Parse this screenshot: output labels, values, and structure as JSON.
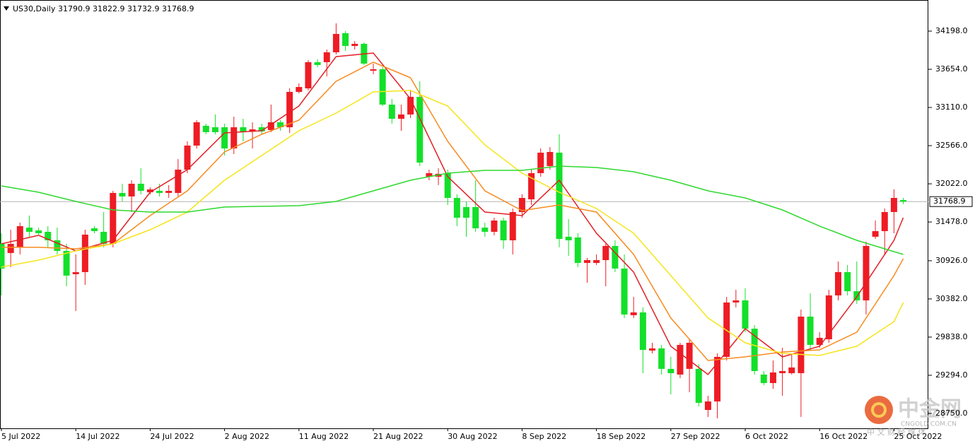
{
  "chart_data": {
    "type": "candlestick",
    "title": "US30,Daily",
    "title_ohlc": "31790.9 31822.9 31732.9 31768.9",
    "categories": [
      "5 Jul 2022",
      null,
      null,
      null,
      null,
      null,
      null,
      null,
      "14 Jul 2022",
      null,
      null,
      null,
      null,
      null,
      null,
      null,
      "24 Jul 2022",
      null,
      null,
      null,
      null,
      null,
      null,
      null,
      "2 Aug 2022",
      null,
      null,
      null,
      null,
      null,
      null,
      null,
      "11 Aug 2022",
      null,
      null,
      null,
      null,
      null,
      null,
      null,
      "21 Aug 2022",
      null,
      null,
      null,
      null,
      null,
      null,
      null,
      "30 Aug 2022",
      null,
      null,
      null,
      null,
      null,
      null,
      null,
      "8 Sep 2022",
      null,
      null,
      null,
      null,
      null,
      null,
      null,
      "18 Sep 2022",
      null,
      null,
      null,
      null,
      null,
      null,
      null,
      "27 Sep 2022",
      null,
      null,
      null,
      null,
      null,
      null,
      null,
      "6 Oct 2022",
      null,
      null,
      null,
      null,
      null,
      null,
      null,
      "16 Oct 2022",
      null,
      null,
      null,
      null,
      null,
      null,
      null,
      "25 Oct 2022",
      null
    ],
    "open": [
      31167,
      31036,
      31117,
      31398,
      31358,
      31338,
      31217,
      31066,
      30734,
      30764,
      31388,
      31338,
      31167,
      31892,
      31842,
      32023,
      31902,
      31922,
      31892,
      31892,
      32224,
      32567,
      32849,
      32828,
      32828,
      32526,
      32828,
      32768,
      32828,
      32788,
      32899,
      32828,
      33332,
      33382,
      33755,
      33755,
      33896,
      34168,
      33986,
      34017,
      33634,
      33654,
      33151,
      32949,
      33010,
      33261,
      32124,
      32124,
      32174,
      31821,
      31691,
      31691,
      31398,
      31338,
      31499,
      31217,
      31620,
      31801,
      32174,
      32275,
      32466,
      31268,
      31257,
      30895,
      30895,
      30935,
      31137,
      30815,
      30150,
      30190,
      29646,
      29677,
      29385,
      29304,
      29385,
      29385,
      28800,
      28921,
      29556,
      30331,
      30361,
      29958,
      29304,
      29183,
      29324,
      29324,
      29324,
      30130,
      29727,
      29807,
      30432,
      30764,
      30492,
      30361,
      31268,
      31348,
      31620,
      31790.9
    ],
    "high": [
      31318,
      31368,
      31469,
      31570,
      31398,
      31419,
      31398,
      31167,
      31016,
      31368,
      31419,
      31620,
      31922,
      32023,
      32073,
      32244,
      31972,
      32023,
      32003,
      32375,
      32627,
      32929,
      32879,
      33010,
      32879,
      32979,
      32949,
      32899,
      32879,
      33151,
      32929,
      33382,
      33453,
      33785,
      33795,
      33936,
      34309,
      34198,
      34057,
      34037,
      33735,
      33684,
      33231,
      33151,
      33362,
      33483,
      32224,
      32244,
      32224,
      31872,
      31771,
      32073,
      31469,
      31539,
      31539,
      31670,
      31872,
      32224,
      32526,
      32546,
      32728,
      31519,
      31318,
      30966,
      31016,
      31167,
      31217,
      31016,
      30412,
      30261,
      29757,
      29727,
      29556,
      29757,
      29807,
      29455,
      29002,
      29606,
      30412,
      30512,
      30533,
      30009,
      29354,
      29505,
      29687,
      29606,
      30230,
      30462,
      29908,
      30512,
      30915,
      30865,
      30915,
      31197,
      31499,
      31670,
      31942,
      31822.9
    ],
    "low": [
      30432,
      30835,
      31016,
      31268,
      31298,
      31117,
      31016,
      30563,
      30210,
      30583,
      31318,
      31117,
      31117,
      31771,
      31620,
      31872,
      31872,
      31842,
      31821,
      31842,
      32174,
      32526,
      32728,
      32728,
      32426,
      32446,
      32627,
      32526,
      32728,
      32758,
      32778,
      32748,
      33312,
      33352,
      33684,
      33553,
      33866,
      33916,
      33936,
      33715,
      33584,
      33131,
      32879,
      32778,
      32959,
      32275,
      32073,
      32003,
      31721,
      31419,
      31268,
      31338,
      31268,
      31288,
      31096,
      31016,
      31539,
      31721,
      32124,
      32224,
      31117,
      30996,
      30835,
      30613,
      30865,
      30563,
      30764,
      30110,
      30110,
      29324,
      29606,
      29304,
      29022,
      29254,
      29052,
      28851,
      28700,
      28680,
      29505,
      30261,
      29908,
      29304,
      29153,
      29102,
      29002,
      29304,
      28700,
      29656,
      29687,
      29757,
      30361,
      30432,
      30311,
      30160,
      31237,
      31016,
      31318,
      31732.9
    ],
    "close": [
      30815,
      31167,
      31419,
      31338,
      31318,
      31217,
      31066,
      30714,
      30764,
      31298,
      31348,
      31167,
      31892,
      31842,
      32023,
      31922,
      31942,
      31892,
      31922,
      32224,
      32567,
      32899,
      32758,
      32758,
      32526,
      32828,
      32768,
      32798,
      32768,
      32899,
      32828,
      33332,
      33402,
      33755,
      33715,
      33896,
      34158,
      33986,
      34017,
      33735,
      33654,
      33151,
      32949,
      33010,
      33261,
      32325,
      32174,
      32164,
      31821,
      31539,
      31539,
      31388,
      31338,
      31499,
      31217,
      31620,
      31821,
      32174,
      32466,
      32476,
      31237,
      31217,
      30895,
      30935,
      30935,
      31137,
      30815,
      30160,
      30190,
      29656,
      29677,
      29385,
      29324,
      29727,
      29757,
      28901,
      28921,
      29556,
      30331,
      30361,
      29958,
      29354,
      29183,
      29334,
      29354,
      29405,
      30130,
      29727,
      29827,
      30432,
      30764,
      30492,
      30361,
      31137,
      31348,
      31620,
      31821,
      31768.9
    ],
    "up_color": "#ee1c24",
    "down_color": "#13e02a",
    "lines": [
      {
        "color": "#e31e24",
        "x": [
          0,
          4,
          8,
          12,
          16,
          20,
          24,
          28,
          32,
          36,
          40,
          44,
          48,
          52,
          56,
          60,
          64,
          68,
          72,
          76,
          80,
          84,
          88,
          92,
          96,
          97
        ],
        "values": [
          31167,
          31288,
          31066,
          31217,
          31902,
          32224,
          32748,
          32778,
          33131,
          33835,
          33886,
          33231,
          32124,
          31620,
          31570,
          32073,
          31318,
          30764,
          29707,
          29304,
          29958,
          29556,
          29707,
          30412,
          31217,
          31539
        ]
      },
      {
        "color": "#f68b1f",
        "x": [
          0,
          4,
          8,
          12,
          16,
          20,
          24,
          28,
          32,
          36,
          40,
          44,
          48,
          52,
          56,
          60,
          64,
          68,
          72,
          76,
          80,
          84,
          88,
          92,
          96,
          97
        ],
        "values": [
          31117,
          31117,
          31096,
          31167,
          31570,
          31922,
          32476,
          32728,
          32929,
          33483,
          33755,
          33533,
          32627,
          31922,
          31640,
          31721,
          31620,
          31016,
          30110,
          29505,
          29556,
          29626,
          29656,
          29908,
          30714,
          30955
        ]
      },
      {
        "color": "#f5e51b",
        "x": [
          0,
          4,
          8,
          12,
          16,
          20,
          24,
          28,
          32,
          36,
          40,
          44,
          48,
          52,
          56,
          60,
          64,
          68,
          72,
          76,
          80,
          84,
          88,
          92,
          96,
          97
        ],
        "values": [
          30835,
          30935,
          31066,
          31167,
          31368,
          31620,
          32073,
          32426,
          32778,
          33030,
          33332,
          33352,
          33131,
          32577,
          32174,
          31902,
          31670,
          31318,
          30714,
          30110,
          29757,
          29606,
          29576,
          29707,
          30059,
          30331
        ]
      },
      {
        "color": "#2ed82e",
        "x": [
          0,
          4,
          8,
          12,
          16,
          20,
          24,
          28,
          32,
          36,
          40,
          44,
          48,
          52,
          56,
          60,
          64,
          68,
          72,
          76,
          80,
          84,
          88,
          92,
          96,
          97
        ],
        "values": [
          31993,
          31902,
          31771,
          31650,
          31620,
          31620,
          31691,
          31701,
          31711,
          31771,
          31922,
          32073,
          32174,
          32214,
          32214,
          32275,
          32254,
          32194,
          32073,
          31922,
          31821,
          31650,
          31419,
          31217,
          31056,
          31016
        ]
      }
    ],
    "last_price": 31768.9,
    "ylim": [
      28548,
      34591
    ],
    "yticks": [
      {
        "value": 34198,
        "label": "34198.0"
      },
      {
        "value": 33654,
        "label": "33654.0"
      },
      {
        "value": 33110,
        "label": "33110.0"
      },
      {
        "value": 32566,
        "label": "32566.0"
      },
      {
        "value": 32022,
        "label": "32022.0"
      },
      {
        "value": 31478,
        "label": "31478.0"
      },
      {
        "value": 30926,
        "label": "30926.0"
      },
      {
        "value": 30382,
        "label": "30382.0"
      },
      {
        "value": 29838,
        "label": "29838.0"
      },
      {
        "value": 29294,
        "label": "29294.0"
      },
      {
        "value": 28750,
        "label": "28750.0"
      }
    ]
  },
  "watermark": {
    "name": "中金网",
    "site": "CNGOLD.COM.CN",
    "slogan": "中 文 财 经 媒 体"
  }
}
